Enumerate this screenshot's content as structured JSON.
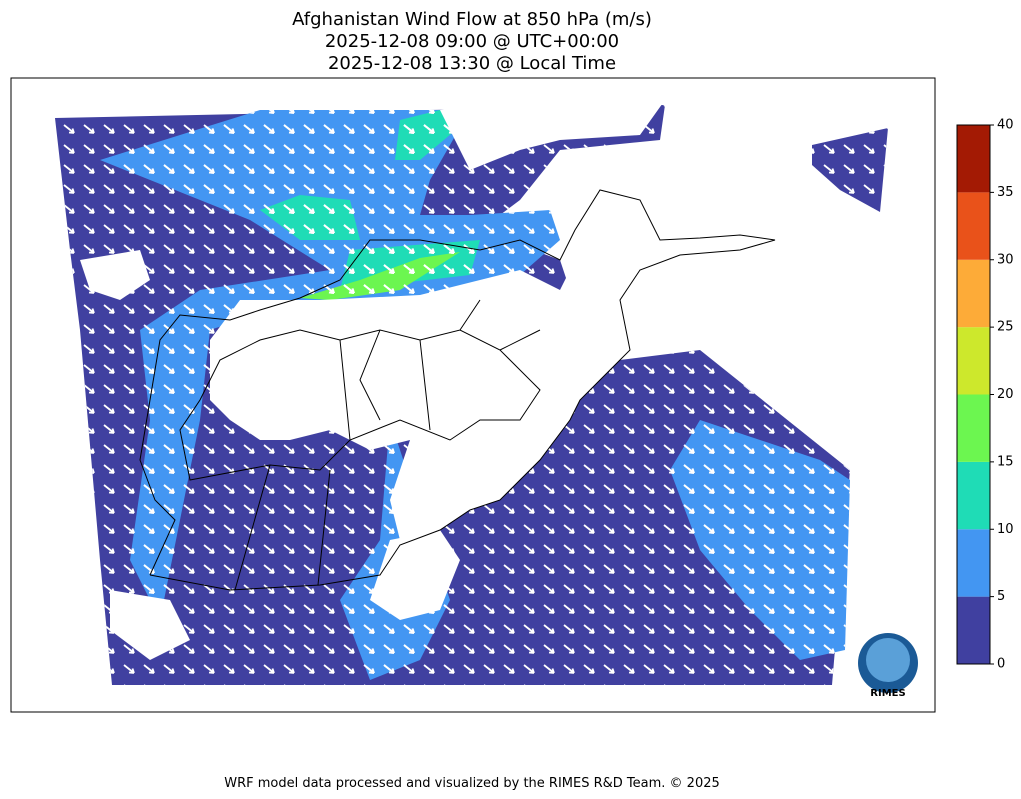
{
  "title": [
    "Afghanistan Wind Flow at 850 hPa (m/s)",
    "2025-12-08 09:00 @ UTC+00:00",
    "2025-12-08 13:30 @ Local Time"
  ],
  "colorbar": {
    "ticks": [
      0,
      5,
      10,
      15,
      20,
      25,
      30,
      35,
      40
    ],
    "colors": [
      "#4040a0",
      "#4396f2",
      "#1fdcb6",
      "#6cf650",
      "#cde82c",
      "#fdab38",
      "#e9521a",
      "#a31a04"
    ]
  },
  "logo": "RIMES",
  "footer": "WRF model data processed and visualized by the RIMES R&D Team. © 2025"
}
